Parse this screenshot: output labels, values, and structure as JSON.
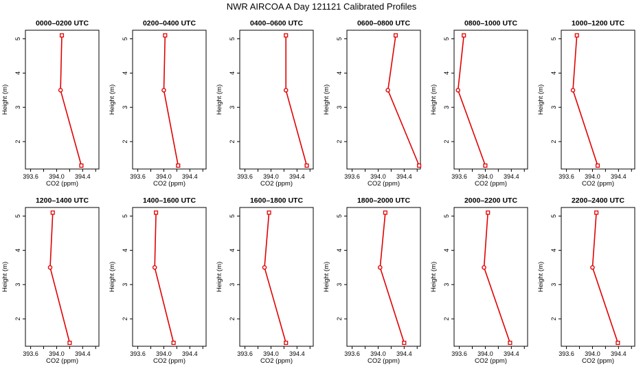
{
  "title": "NWR AIRCOA A  Day 121121  Calibrated Profiles",
  "chart_data": {
    "type": "line",
    "xlabel": "CO2 (ppm)",
    "ylabel": "Height (m)",
    "xlim": [
      393.52,
      394.65
    ],
    "ylim": [
      1.2,
      5.25
    ],
    "xticks": [
      393.6,
      393.8,
      394.0,
      394.2,
      394.4,
      394.6
    ],
    "xtick_labels": [
      "393.6",
      "",
      "394.0",
      "",
      "394.4",
      ""
    ],
    "yticks": [
      2,
      3,
      4,
      5
    ],
    "yticks_labels": [
      "2",
      "3",
      "4",
      "5"
    ],
    "heights": [
      1.3,
      3.5,
      5.1
    ],
    "panels": [
      {
        "title": "0000–0200 UTC",
        "co2": [
          394.38,
          394.06,
          394.08
        ]
      },
      {
        "title": "0200–0400 UTC",
        "co2": [
          394.22,
          394.0,
          394.02
        ]
      },
      {
        "title": "0400–0600 UTC",
        "co2": [
          394.55,
          394.23,
          394.23
        ]
      },
      {
        "title": "0600–0800 UTC",
        "co2": [
          394.63,
          394.15,
          394.27
        ]
      },
      {
        "title": "0800–1000 UTC",
        "co2": [
          394.0,
          393.58,
          393.67
        ]
      },
      {
        "title": "1000–1200 UTC",
        "co2": [
          394.08,
          393.7,
          393.76
        ]
      },
      {
        "title": "1200–1400 UTC",
        "co2": [
          394.2,
          393.9,
          393.94
        ]
      },
      {
        "title": "1400–1600 UTC",
        "co2": [
          394.15,
          393.86,
          393.88
        ]
      },
      {
        "title": "1600–1800 UTC",
        "co2": [
          394.23,
          393.9,
          393.97
        ]
      },
      {
        "title": "1800–2000 UTC",
        "co2": [
          394.4,
          394.03,
          394.11
        ]
      },
      {
        "title": "2000–2200 UTC",
        "co2": [
          394.38,
          393.98,
          394.04
        ]
      },
      {
        "title": "2200–2400 UTC",
        "co2": [
          394.39,
          394.0,
          394.06
        ]
      }
    ],
    "line_color": "#e00000",
    "marker_color": "#e00000"
  }
}
